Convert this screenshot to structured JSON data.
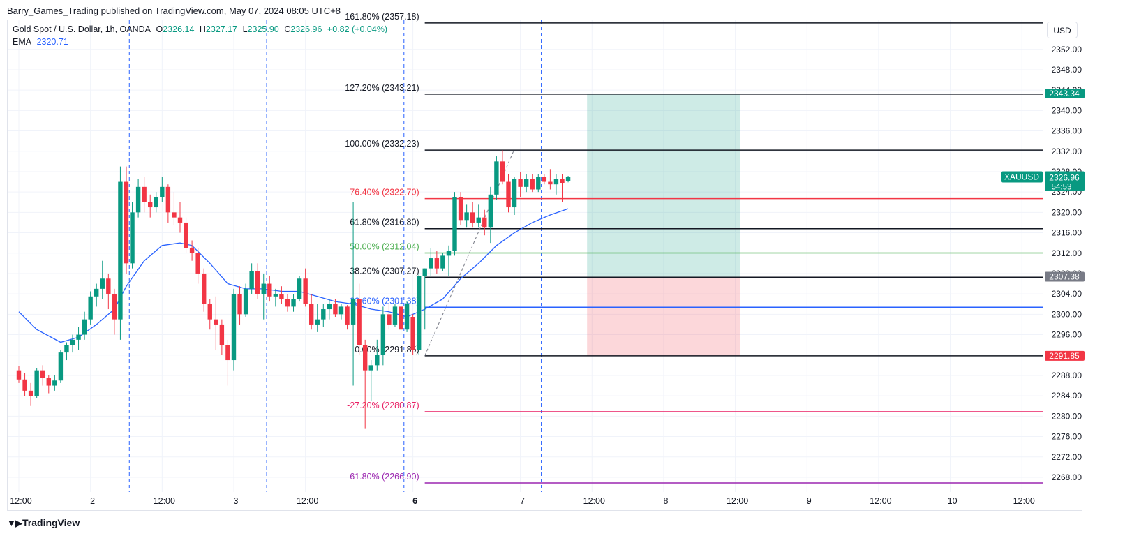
{
  "publisher_line": "Barry_Games_Trading published on TradingView.com, May 07, 2024 08:05 UTC+8",
  "legend": {
    "symbol": "Gold Spot / U.S. Dollar, 1h, OANDA",
    "o_label": "O",
    "o_value": "2326.14",
    "h_label": "H",
    "h_value": "2327.17",
    "l_label": "L",
    "l_value": "2325.90",
    "c_label": "C",
    "c_value": "2326.96",
    "change": "+0.82 (+0.04%)",
    "ema_label": "EMA",
    "ema_value": "2320.71"
  },
  "currency_button": "USD",
  "brand": "TradingView",
  "colors": {
    "up": "#089981",
    "down": "#f23645",
    "ema": "#2962ff",
    "grid": "#f0f3fa"
  },
  "chart_data": {
    "type": "candlestick",
    "timeframe": "1h",
    "ylim": [
      2264.5,
      2356.5
    ],
    "yticks": [
      "2268.00",
      "2272.00",
      "2276.00",
      "2280.00",
      "2284.00",
      "2288.00",
      "2292.00",
      "2296.00",
      "2300.00",
      "2304.00",
      "2308.00",
      "2312.00",
      "2316.00",
      "2320.00",
      "2324.00",
      "2328.00",
      "2332.00",
      "2336.00",
      "2340.00",
      "2344.00",
      "2348.00",
      "2352.00"
    ],
    "xticks": [
      {
        "i": 0,
        "label": "12:00",
        "bold": false
      },
      {
        "i": 12,
        "label": "2",
        "bold": false
      },
      {
        "i": 24,
        "label": "12:00",
        "bold": false
      },
      {
        "i": 36,
        "label": "3",
        "bold": false
      },
      {
        "i": 48,
        "label": "12:00",
        "bold": false
      },
      {
        "i": 66,
        "label": "6",
        "bold": true
      },
      {
        "i": 84,
        "label": "7",
        "bold": false
      },
      {
        "i": 96,
        "label": "12:00",
        "bold": false
      },
      {
        "i": 108,
        "label": "8",
        "bold": false
      },
      {
        "i": 120,
        "label": "12:00",
        "bold": false
      },
      {
        "i": 132,
        "label": "9",
        "bold": false
      },
      {
        "i": 144,
        "label": "12:00",
        "bold": false
      },
      {
        "i": 156,
        "label": "10",
        "bold": false
      },
      {
        "i": 168,
        "label": "12:00",
        "bold": false
      }
    ],
    "candles": [
      [
        2289.0,
        2289.8,
        2286.5,
        2287.2
      ],
      [
        2287.2,
        2288.5,
        2284.0,
        2285.0
      ],
      [
        2285.0,
        2286.5,
        2282.0,
        2284.0
      ],
      [
        2284.0,
        2289.5,
        2283.5,
        2289.0
      ],
      [
        2289.0,
        2290.0,
        2286.0,
        2287.5
      ],
      [
        2287.5,
        2288.0,
        2284.5,
        2286.0
      ],
      [
        2286.0,
        2288.0,
        2285.0,
        2287.0
      ],
      [
        2287.0,
        2293.0,
        2286.5,
        2292.5
      ],
      [
        2292.5,
        2294.5,
        2291.0,
        2294.0
      ],
      [
        2294.0,
        2296.0,
        2292.5,
        2295.0
      ],
      [
        2295.0,
        2297.5,
        2293.0,
        2296.0
      ],
      [
        2296.0,
        2300.5,
        2295.0,
        2299.0
      ],
      [
        2299.0,
        2304.5,
        2298.0,
        2303.5
      ],
      [
        2303.5,
        2306.0,
        2301.5,
        2305.0
      ],
      [
        2305.0,
        2310.5,
        2303.0,
        2307.0
      ],
      [
        2307.0,
        2308.0,
        2301.0,
        2304.0
      ],
      [
        2304.0,
        2305.0,
        2296.0,
        2299.0
      ],
      [
        2299.0,
        2329.0,
        2295.0,
        2326.0
      ],
      [
        2326.0,
        2329.0,
        2308.0,
        2310.0
      ],
      [
        2310.0,
        2322.0,
        2309.0,
        2320.0
      ],
      [
        2320.0,
        2326.5,
        2319.0,
        2325.0
      ],
      [
        2325.0,
        2327.0,
        2320.0,
        2322.0
      ],
      [
        2322.0,
        2323.5,
        2319.0,
        2321.0
      ],
      [
        2321.0,
        2324.0,
        2320.0,
        2323.0
      ],
      [
        2323.0,
        2327.0,
        2322.0,
        2325.0
      ],
      [
        2325.0,
        2325.5,
        2318.0,
        2320.0
      ],
      [
        2320.0,
        2324.0,
        2317.5,
        2319.0
      ],
      [
        2319.0,
        2322.0,
        2316.0,
        2318.0
      ],
      [
        2318.0,
        2319.0,
        2312.0,
        2313.0
      ],
      [
        2313.0,
        2314.5,
        2310.5,
        2312.0
      ],
      [
        2312.0,
        2313.0,
        2306.0,
        2308.0
      ],
      [
        2308.0,
        2309.0,
        2300.5,
        2302.0
      ],
      [
        2302.0,
        2303.0,
        2297.0,
        2299.0
      ],
      [
        2299.0,
        2303.5,
        2293.0,
        2298.0
      ],
      [
        2298.0,
        2299.0,
        2292.0,
        2294.0
      ],
      [
        2294.0,
        2295.0,
        2286.0,
        2291.0
      ],
      [
        2291.0,
        2305.0,
        2289.0,
        2304.0
      ],
      [
        2304.0,
        2305.5,
        2298.0,
        2300.0
      ],
      [
        2300.0,
        2306.0,
        2299.5,
        2305.0
      ],
      [
        2305.0,
        2310.0,
        2304.0,
        2308.5
      ],
      [
        2308.5,
        2310.0,
        2303.0,
        2304.0
      ],
      [
        2304.0,
        2308.0,
        2299.0,
        2306.0
      ],
      [
        2306.0,
        2307.5,
        2302.5,
        2303.5
      ],
      [
        2303.5,
        2305.0,
        2301.5,
        2304.0
      ],
      [
        2304.0,
        2305.5,
        2302.0,
        2303.0
      ],
      [
        2303.0,
        2304.0,
        2300.5,
        2301.5
      ],
      [
        2301.5,
        2304.0,
        2300.5,
        2303.0
      ],
      [
        2303.0,
        2307.5,
        2302.5,
        2307.0
      ],
      [
        2307.0,
        2309.0,
        2301.5,
        2302.0
      ],
      [
        2302.0,
        2304.0,
        2297.0,
        2298.0
      ],
      [
        2298.0,
        2302.0,
        2296.5,
        2299.0
      ],
      [
        2299.0,
        2302.0,
        2297.5,
        2301.0
      ],
      [
        2301.0,
        2303.0,
        2299.0,
        2302.0
      ],
      [
        2302.0,
        2303.0,
        2299.5,
        2300.0
      ],
      [
        2300.0,
        2302.0,
        2299.0,
        2301.5
      ],
      [
        2301.5,
        2301.8,
        2297.0,
        2298.0
      ],
      [
        2298.0,
        2322.0,
        2286.0,
        2303.0
      ],
      [
        2303.0,
        2306.0,
        2292.0,
        2294.0
      ],
      [
        2294.0,
        2295.0,
        2277.5,
        2289.0
      ],
      [
        2289.0,
        2291.0,
        2283.0,
        2290.0
      ],
      [
        2290.0,
        2295.0,
        2289.0,
        2292.0
      ],
      [
        2292.0,
        2301.5,
        2290.0,
        2300.0
      ],
      [
        2300.0,
        2302.0,
        2297.0,
        2298.0
      ],
      [
        2298.0,
        2302.0,
        2297.5,
        2301.5
      ],
      [
        2301.5,
        2302.5,
        2296.0,
        2297.0
      ],
      [
        2297.0,
        2302.5,
        2296.5,
        2302.0
      ],
      [
        2299.5,
        2300.0,
        2292.0,
        2293.0
      ],
      [
        2293.0,
        2308.0,
        2292.0,
        2307.5
      ],
      [
        2307.5,
        2309.0,
        2297.0,
        2309.0
      ],
      [
        2309.0,
        2313.0,
        2307.5,
        2311.0
      ],
      [
        2311.0,
        2312.5,
        2308.0,
        2309.0
      ],
      [
        2309.0,
        2312.0,
        2308.5,
        2311.5
      ],
      [
        2311.5,
        2313.5,
        2307.5,
        2312.5
      ],
      [
        2312.5,
        2324.0,
        2311.5,
        2323.0
      ],
      [
        2323.0,
        2324.0,
        2317.5,
        2318.5
      ],
      [
        2318.5,
        2321.5,
        2317.0,
        2320.0
      ],
      [
        2320.0,
        2322.0,
        2317.0,
        2318.0
      ],
      [
        2318.0,
        2321.5,
        2317.0,
        2319.0
      ],
      [
        2319.0,
        2320.5,
        2315.5,
        2317.0
      ],
      [
        2317.0,
        2325.0,
        2314.0,
        2323.5
      ],
      [
        2323.5,
        2331.0,
        2322.5,
        2330.0
      ],
      [
        2330.0,
        2332.2,
        2325.5,
        2326.0
      ],
      [
        2326.0,
        2327.5,
        2320.0,
        2321.0
      ],
      [
        2321.0,
        2327.0,
        2319.5,
        2326.5
      ],
      [
        2326.5,
        2328.0,
        2323.0,
        2325.0
      ],
      [
        2325.0,
        2327.5,
        2324.0,
        2326.5
      ],
      [
        2326.5,
        2327.5,
        2324.0,
        2324.5
      ],
      [
        2324.5,
        2327.5,
        2324.0,
        2327.0
      ],
      [
        2327.0,
        2327.5,
        2325.5,
        2326.0
      ],
      [
        2326.0,
        2328.5,
        2324.5,
        2325.5
      ],
      [
        2325.5,
        2327.5,
        2323.5,
        2326.5
      ],
      [
        2326.5,
        2327.5,
        2322.0,
        2325.8
      ],
      [
        2326.14,
        2327.17,
        2325.9,
        2326.96
      ]
    ],
    "ema": [
      [
        0,
        2300.5
      ],
      [
        3,
        2297.0
      ],
      [
        7,
        2294.5
      ],
      [
        10,
        2295.5
      ],
      [
        13,
        2298.0
      ],
      [
        16,
        2301.0
      ],
      [
        18,
        2305.5
      ],
      [
        21,
        2310.5
      ],
      [
        24,
        2313.5
      ],
      [
        27,
        2314.0
      ],
      [
        29,
        2313.5
      ],
      [
        32,
        2310.0
      ],
      [
        35,
        2306.0
      ],
      [
        38,
        2305.0
      ],
      [
        41,
        2305.0
      ],
      [
        44,
        2304.5
      ],
      [
        47,
        2304.5
      ],
      [
        50,
        2303.5
      ],
      [
        53,
        2302.5
      ],
      [
        56,
        2302.0
      ],
      [
        59,
        2301.0
      ],
      [
        62,
        2300.5
      ],
      [
        65,
        2299.5
      ],
      [
        68,
        2301.0
      ],
      [
        71,
        2303.0
      ],
      [
        74,
        2307.0
      ],
      [
        77,
        2310.0
      ],
      [
        80,
        2313.5
      ],
      [
        83,
        2316.0
      ],
      [
        86,
        2318.0
      ],
      [
        89,
        2319.5
      ],
      [
        92,
        2320.71
      ]
    ],
    "fibonacci": {
      "anchor_start_index": 66,
      "anchor_end_index": 82,
      "levels": [
        {
          "label": "-61.80% (2266.90)",
          "price": 2266.9,
          "color": "#9c27b0"
        },
        {
          "label": "-27.20% (2280.87)",
          "price": 2280.87,
          "color": "#e91e63"
        },
        {
          "label": "0.00% (2291.85)",
          "price": 2291.85,
          "color": "#131722"
        },
        {
          "label": "23.60% (2301.38)",
          "price": 2301.38,
          "color": "#2962ff"
        },
        {
          "label": "38.20% (2307.27)",
          "price": 2307.27,
          "color": "#131722"
        },
        {
          "label": "50.00% (2312.04)",
          "price": 2312.04,
          "color": "#4caf50"
        },
        {
          "label": "61.80% (2316.80)",
          "price": 2316.8,
          "color": "#131722"
        },
        {
          "label": "76.40% (2322.70)",
          "price": 2322.7,
          "color": "#f23645"
        },
        {
          "label": "100.00% (2332.23)",
          "price": 2332.23,
          "color": "#131722"
        },
        {
          "label": "127.20% (2343.21)",
          "price": 2343.21,
          "color": "#131722"
        },
        {
          "label": "161.80% (2357.18)",
          "price": 2357.18,
          "color": "#131722"
        }
      ]
    },
    "position": {
      "start_index": 94,
      "end_index": 120,
      "target": 2343.34,
      "entry": 2307.38,
      "stop": 2291.85
    },
    "vertical_markers": [
      18.5,
      41.5,
      64.5,
      87.5
    ],
    "price_labels": [
      {
        "text": "2343.34",
        "price": 2343.34,
        "bg": "#089981"
      },
      {
        "text": "2307.38",
        "price": 2307.38,
        "bg": "#787b86"
      },
      {
        "text": "2291.85",
        "price": 2291.85,
        "bg": "#f23645"
      }
    ],
    "last_price": {
      "symbol": "XAUUSD",
      "value": "2326.96",
      "countdown": "54:53",
      "price": 2326.96,
      "bg": "#089981"
    }
  }
}
